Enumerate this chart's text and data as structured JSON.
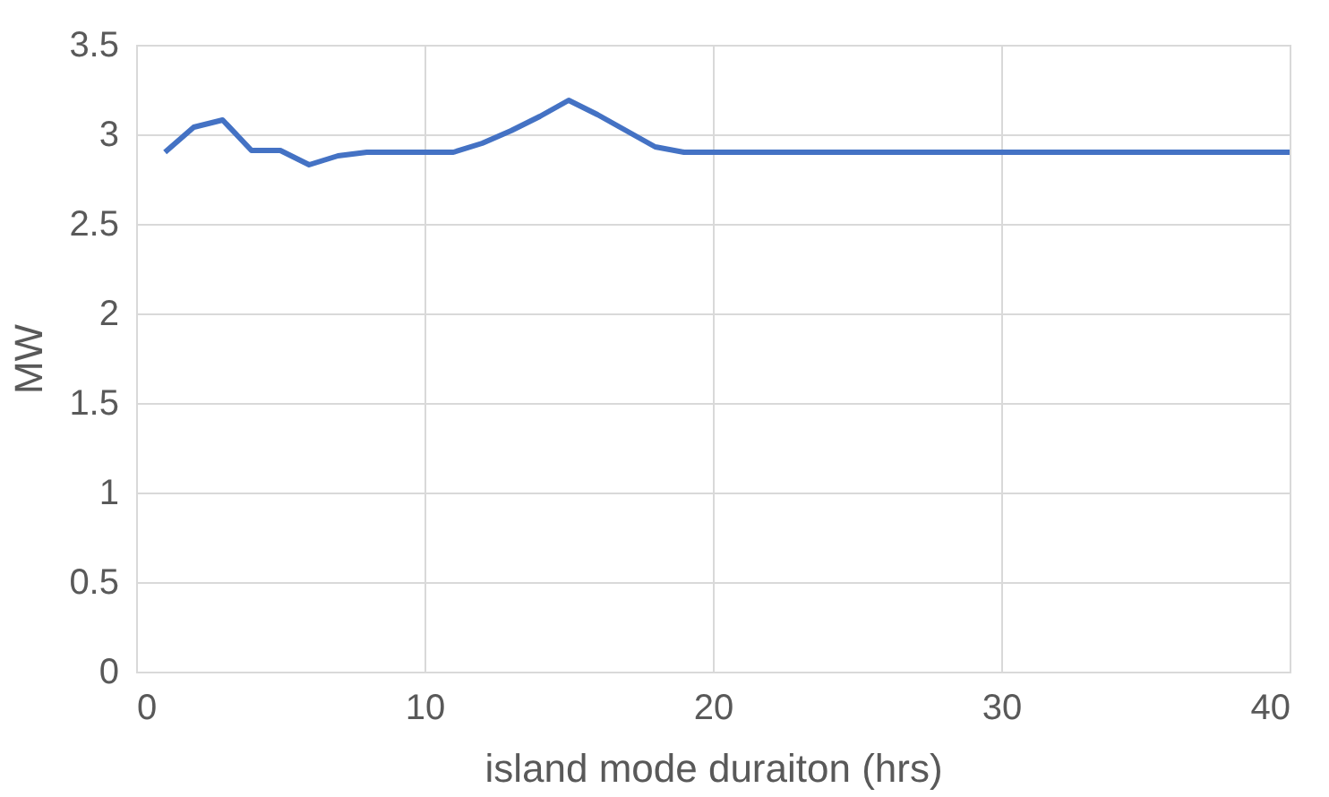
{
  "chart_data": {
    "type": "line",
    "xlabel": "island mode duraiton (hrs)",
    "ylabel": "MW",
    "x": [
      1,
      2,
      3,
      4,
      5,
      6,
      7,
      8,
      9,
      10,
      11,
      12,
      13,
      14,
      15,
      16,
      17,
      18,
      19,
      20,
      25,
      30,
      35,
      40
    ],
    "series": [
      {
        "color": "#4472c4",
        "values": [
          2.9,
          3.04,
          3.08,
          2.91,
          2.91,
          2.83,
          2.88,
          2.9,
          2.9,
          2.9,
          2.9,
          2.95,
          3.02,
          3.1,
          3.19,
          3.11,
          3.02,
          2.93,
          2.9,
          2.9,
          2.9,
          2.9,
          2.9,
          2.9
        ]
      }
    ],
    "xlim": [
      0,
      40
    ],
    "xticks": [
      0,
      10,
      20,
      30,
      40
    ],
    "ylim": [
      0,
      3.5
    ],
    "yticks": [
      0,
      0.5,
      1,
      1.5,
      2,
      2.5,
      3,
      3.5
    ],
    "grid": true,
    "marker": "none",
    "line_style": "solid"
  }
}
